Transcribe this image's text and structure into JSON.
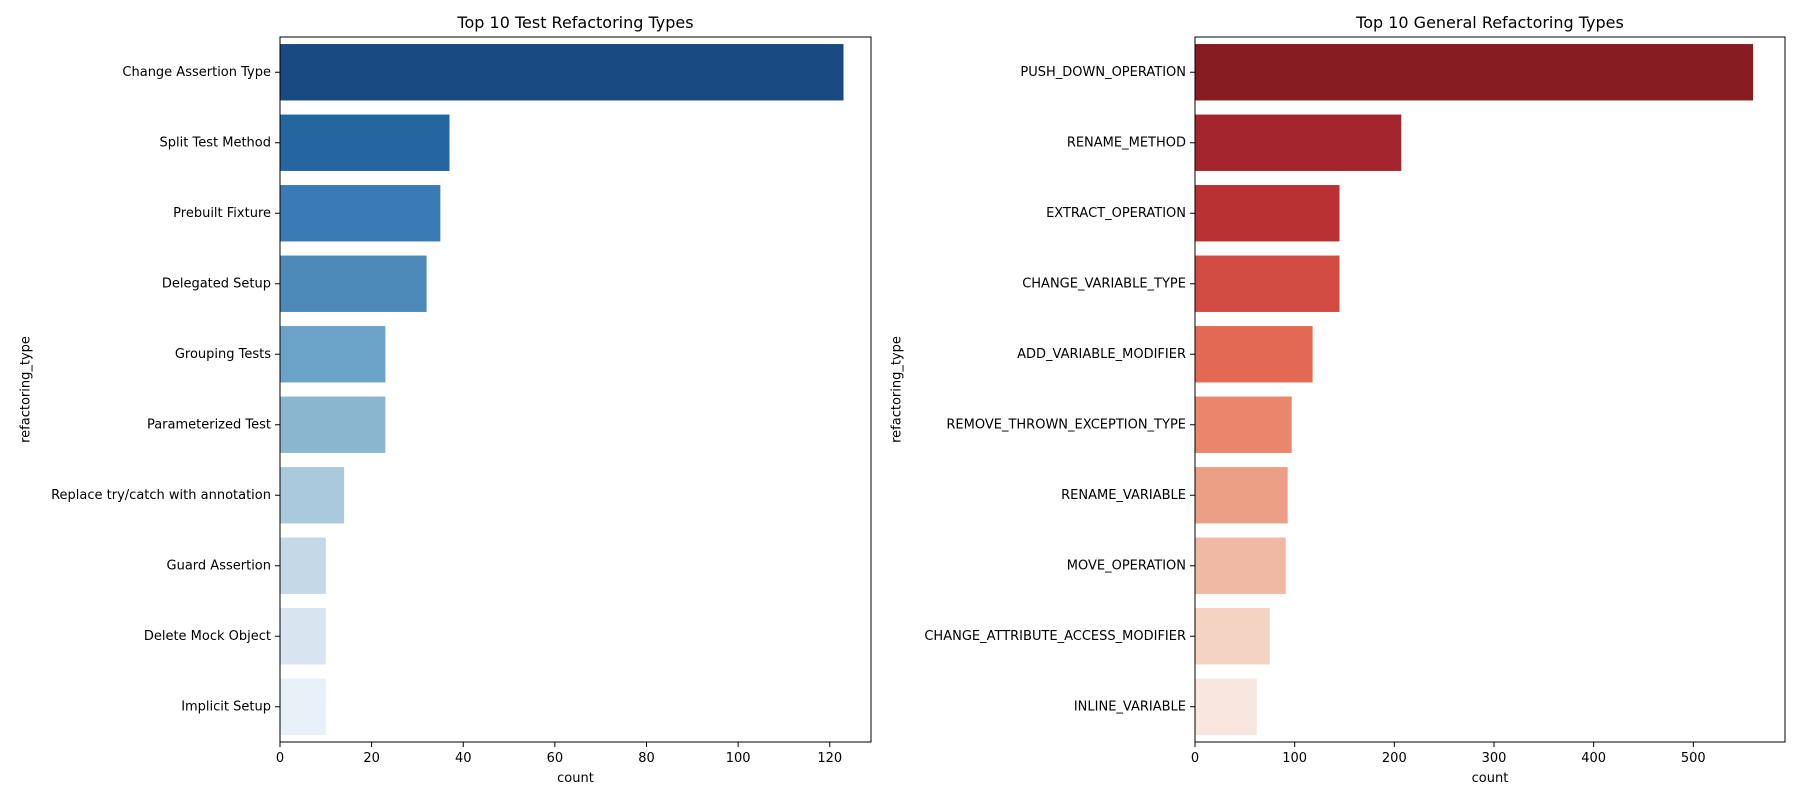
{
  "chart_data": [
    {
      "type": "bar",
      "orientation": "horizontal",
      "title": "Top 10 Test Refactoring Types",
      "xlabel": "count",
      "ylabel": "refactoring_type",
      "xlim": [
        0,
        129
      ],
      "xticks": [
        0,
        20,
        40,
        60,
        80,
        100,
        120
      ],
      "categories": [
        "Change Assertion Type",
        "Split Test Method",
        "Prebuilt Fixture",
        "Delegated Setup",
        "Grouping Tests",
        "Parameterized Test",
        "Replace try/catch with annotation",
        "Guard Assertion",
        "Delete Mock Object",
        "Implicit Setup"
      ],
      "values": [
        123,
        37,
        35,
        32,
        23,
        23,
        14,
        10,
        10,
        10
      ],
      "colors": [
        "#1a4a82",
        "#2565a0",
        "#3a7ab5",
        "#4e8ab9",
        "#6aa2c8",
        "#8ab6d0",
        "#aac9dc",
        "#c4d8e8",
        "#d8e5f1",
        "#e8f0f8"
      ],
      "grid": false,
      "legend": "none"
    },
    {
      "type": "bar",
      "orientation": "horizontal",
      "title": "Top 10 General Refactoring Types",
      "xlabel": "count",
      "ylabel": "refactoring_type",
      "xlim": [
        0,
        592
      ],
      "xticks": [
        0,
        100,
        200,
        300,
        400,
        500
      ],
      "categories": [
        "PUSH_DOWN_OPERATION",
        "RENAME_METHOD",
        "EXTRACT_OPERATION",
        "CHANGE_VARIABLE_TYPE",
        "ADD_VARIABLE_MODIFIER",
        "REMOVE_THROWN_EXCEPTION_TYPE",
        "RENAME_VARIABLE",
        "MOVE_OPERATION",
        "CHANGE_ATTRIBUTE_ACCESS_MODIFIER",
        "INLINE_VARIABLE"
      ],
      "values": [
        560,
        207,
        145,
        145,
        118,
        97,
        93,
        91,
        75,
        62
      ],
      "colors": [
        "#861b22",
        "#a4262d",
        "#ba3134",
        "#d24b40",
        "#e26a55",
        "#e9866c",
        "#eb9f85",
        "#f0b9a3",
        "#f5d3c2",
        "#f9e6de"
      ],
      "grid": false,
      "legend": "none"
    }
  ]
}
